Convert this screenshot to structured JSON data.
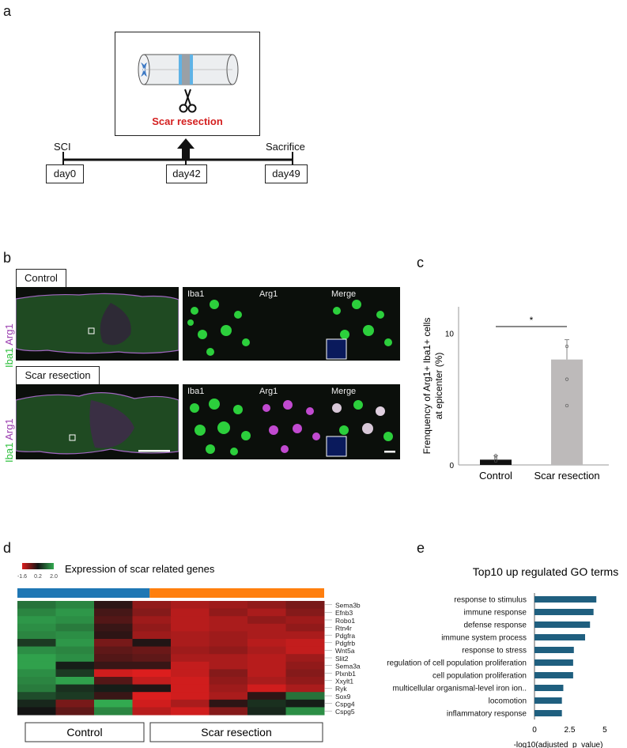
{
  "panels": {
    "a": "a",
    "b": "b",
    "c": "c",
    "d": "d",
    "e": "e"
  },
  "panel_a": {
    "box_title": "Scar resection",
    "timeline_top": [
      "SCI",
      "Sacrifice"
    ],
    "days": [
      "day0",
      "day42",
      "day49"
    ],
    "accent": "#d42020"
  },
  "panel_b": {
    "rows": [
      {
        "label": "Control",
        "channels": [
          "Iba1",
          "Arg1",
          "Merge"
        ]
      },
      {
        "label": "Scar resection",
        "channels": [
          "Iba1",
          "Arg1",
          "Merge"
        ]
      }
    ],
    "side_label_iba": "Iba1",
    "side_label_arg": "Arg1",
    "iba_color": "#2bbf3a",
    "arg_color": "#9b3fb0"
  },
  "chart_data": [
    {
      "type": "bar",
      "categories": [
        "Control",
        "Scar resection"
      ],
      "values": [
        0.4,
        8.0
      ],
      "errors": [
        0.3,
        1.5
      ],
      "points": [
        [
          0.3,
          0.5,
          0.7
        ],
        [
          4.5,
          6.5,
          9.0
        ]
      ],
      "ylabel_line1": "Frenquency of Arg1+ Iba1+ cells",
      "ylabel_line2": "at epicenter (%)",
      "yticks": [
        0,
        5,
        10
      ],
      "ytick_labels": [
        "0",
        "",
        "10"
      ],
      "ylim": [
        0,
        12
      ],
      "significance": "*",
      "colors": [
        "#111111",
        "#bdbaba"
      ]
    },
    {
      "type": "heatmap",
      "title": "Expression of scar related genes",
      "scale_labels": [
        "-1.6",
        "0.2",
        "2.0"
      ],
      "groups": [
        "Control",
        "Scar resection"
      ],
      "group_colors": [
        "#1f77b4",
        "#ff7f0e"
      ],
      "genes": [
        "Sema3b",
        "Efnb3",
        "Robo1",
        "Rtn4r",
        "Pdgfra",
        "Pdgfrb",
        "Wnt5a",
        "Slit2",
        "Sema3a",
        "Plxnb1",
        "Xxylt1",
        "Ryk",
        "Sox9",
        "Cspg4",
        "Cspg5"
      ],
      "values": [
        [
          1.0,
          1.2,
          -0.2,
          -1.0,
          -1.2,
          -1.1,
          -1.0,
          -0.8
        ],
        [
          1.2,
          1.4,
          -0.4,
          -0.9,
          -1.3,
          -1.0,
          -1.2,
          -0.9
        ],
        [
          1.4,
          1.3,
          -0.5,
          -1.1,
          -1.3,
          -1.2,
          -1.0,
          -1.1
        ],
        [
          1.3,
          1.1,
          -0.3,
          -1.0,
          -1.3,
          -1.2,
          -1.2,
          -1.0
        ],
        [
          1.2,
          1.3,
          -0.2,
          -1.1,
          -1.2,
          -1.1,
          -1.2,
          -1.2
        ],
        [
          0.4,
          1.4,
          -0.8,
          -0.1,
          -1.2,
          -1.1,
          -1.3,
          -1.4
        ],
        [
          1.3,
          1.2,
          -0.6,
          -0.7,
          -1.1,
          -1.0,
          -1.2,
          -1.4
        ],
        [
          1.5,
          1.3,
          -0.5,
          -0.6,
          -1.2,
          -1.2,
          -1.3,
          -1.1
        ],
        [
          1.5,
          0.1,
          -0.3,
          -0.3,
          -1.4,
          -1.2,
          -1.3,
          -1.0
        ],
        [
          1.3,
          0.4,
          -1.5,
          -1.6,
          -1.4,
          -0.9,
          -1.3,
          -0.9
        ],
        [
          1.2,
          1.5,
          -0.5,
          -1.4,
          -1.5,
          -1.0,
          -1.2,
          -1.0
        ],
        [
          1.1,
          0.3,
          0.1,
          -0.1,
          -1.5,
          -1.1,
          -1.5,
          -1.2
        ],
        [
          0.6,
          0.4,
          -0.3,
          -1.6,
          -1.5,
          -1.2,
          -0.2,
          1.0
        ],
        [
          0.2,
          -0.8,
          1.6,
          -1.5,
          -1.2,
          -0.2,
          0.3,
          0.1
        ],
        [
          0.0,
          -0.6,
          1.2,
          -1.3,
          -1.5,
          -0.9,
          0.2,
          1.3
        ]
      ]
    },
    {
      "type": "bar",
      "orientation": "horizontal",
      "title": "Top10 up regulated GO terms",
      "categories": [
        "response to stimulus",
        "immune response",
        "defense response",
        "immune system process",
        "response to stress",
        "regulation of cell population proliferation",
        "cell population proliferation",
        "multicellular organismal-level iron ion..",
        "locomotion",
        "inflammatory response"
      ],
      "values": [
        4.4,
        4.2,
        3.95,
        3.6,
        2.8,
        2.75,
        2.75,
        2.05,
        1.95,
        1.95
      ],
      "xticks": [
        0,
        2.5,
        5
      ],
      "xtick_labels": [
        "0",
        "2.5",
        "5"
      ],
      "xlim": [
        0,
        5.4
      ],
      "xlabel": "-log10(adjusted_p_value)",
      "color": "#1f5f7f"
    }
  ]
}
